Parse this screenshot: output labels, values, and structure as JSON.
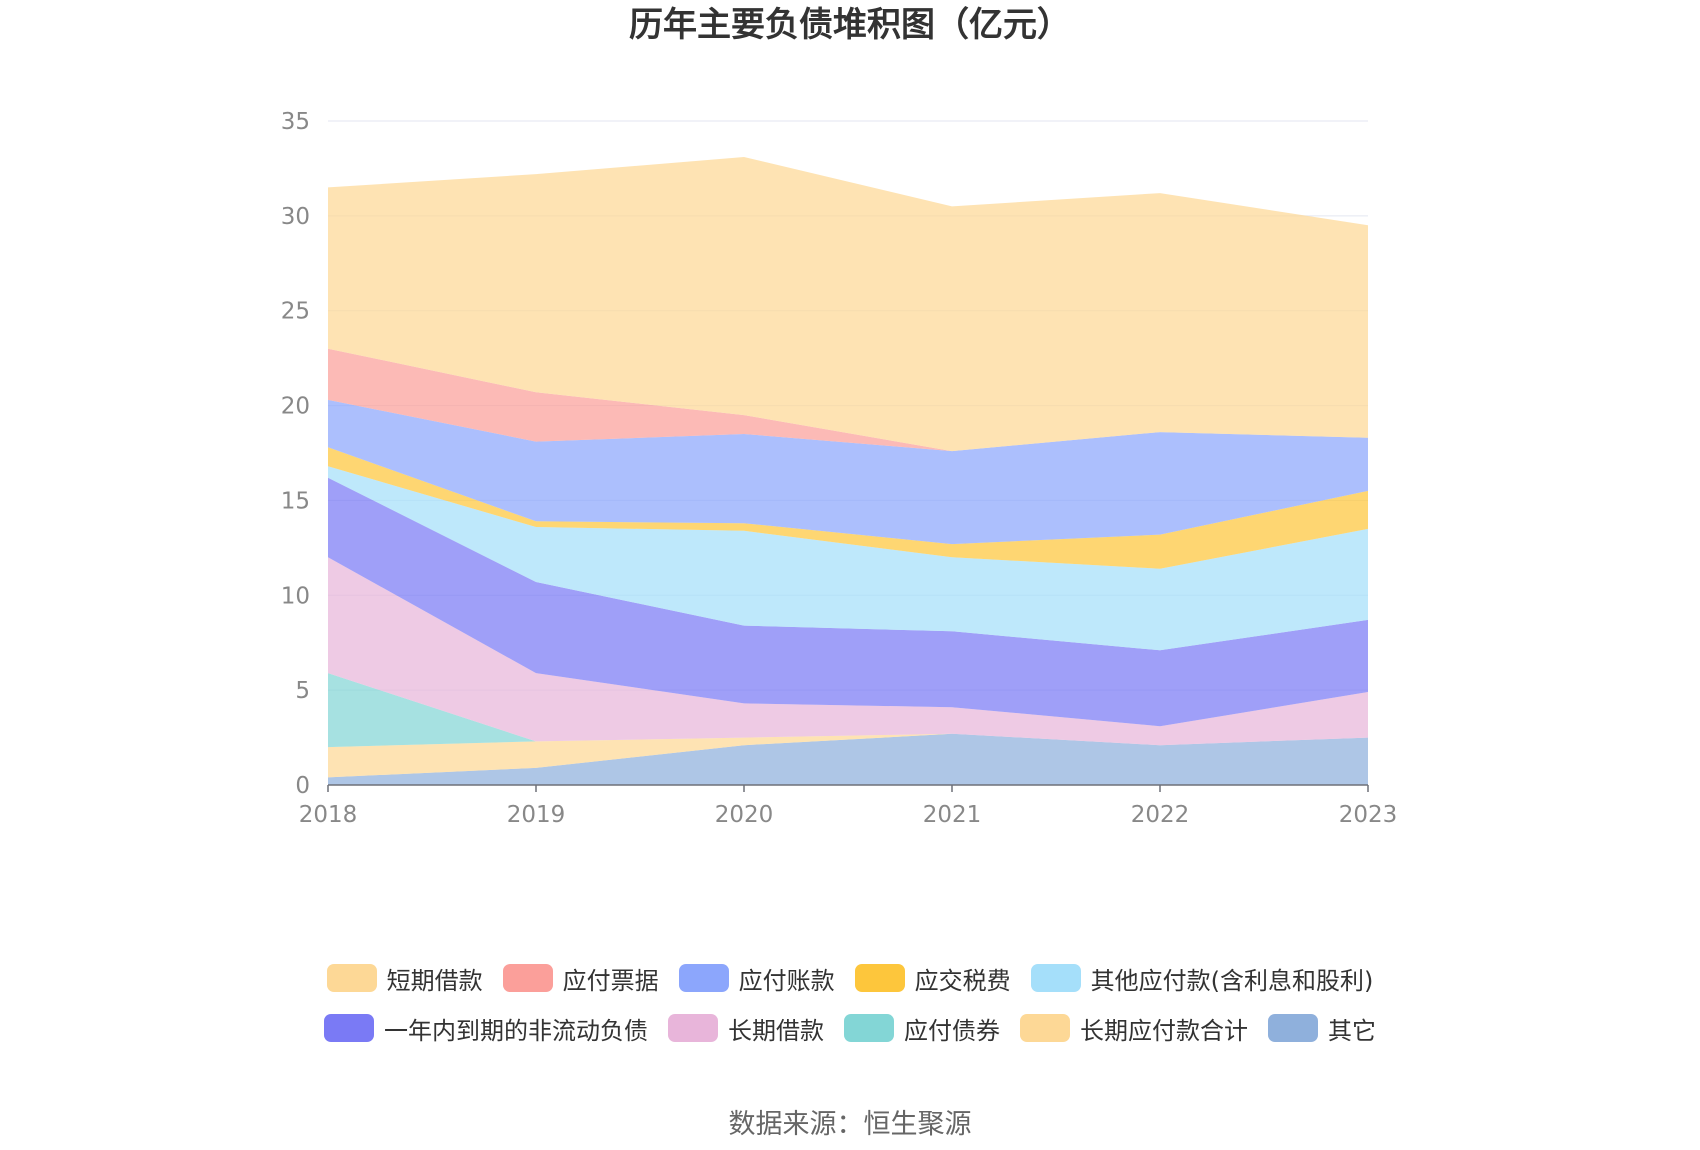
{
  "chart_data": {
    "type": "area",
    "stacked": true,
    "title": "历年主要负债堆积图（亿元）",
    "source": "数据来源：恒生聚源",
    "x": [
      "2018",
      "2019",
      "2020",
      "2021",
      "2022",
      "2023"
    ],
    "ylim": [
      0,
      35
    ],
    "yticks": [
      "0",
      "5",
      "10",
      "15",
      "20",
      "25",
      "30",
      "35"
    ],
    "grid": true,
    "legend_position": "bottom",
    "series": [
      {
        "name": "其它",
        "color": "#8fb0dc",
        "values": [
          0.4,
          0.9,
          2.1,
          2.7,
          2.1,
          2.5
        ]
      },
      {
        "name": "长期应付款合计",
        "color": "#fdd896",
        "values": [
          1.6,
          1.4,
          0.4,
          0.0,
          0.0,
          0.0
        ]
      },
      {
        "name": "应付债券",
        "color": "#83d6d6",
        "values": [
          3.9,
          0.0,
          0.0,
          0.0,
          0.0,
          0.0
        ]
      },
      {
        "name": "长期借款",
        "color": "#e8b5da",
        "values": [
          6.1,
          3.6,
          1.8,
          1.4,
          1.0,
          2.4
        ]
      },
      {
        "name": "一年内到期的非流动负债",
        "color": "#7a7af5",
        "values": [
          4.2,
          4.8,
          4.1,
          4.0,
          4.0,
          3.8
        ]
      },
      {
        "name": "其他应付款(含利息和股利)",
        "color": "#a5dffa",
        "values": [
          0.6,
          2.9,
          5.0,
          3.9,
          4.3,
          4.8
        ]
      },
      {
        "name": "应交税费",
        "color": "#fdc63c",
        "values": [
          1.0,
          0.3,
          0.4,
          0.7,
          1.8,
          2.0
        ]
      },
      {
        "name": "应付账款",
        "color": "#8ca6fc",
        "values": [
          2.5,
          4.2,
          4.7,
          4.9,
          5.4,
          2.8
        ]
      },
      {
        "name": "应付票据",
        "color": "#fb9f9a",
        "values": [
          2.7,
          2.6,
          1.0,
          0.0,
          0.0,
          0.0
        ]
      },
      {
        "name": "短期借款",
        "color": "#fdd896",
        "values": [
          8.5,
          11.5,
          13.6,
          12.9,
          12.6,
          11.2
        ]
      }
    ],
    "legend_rows": [
      [
        {
          "name": "短期借款",
          "color": "#fdd896"
        },
        {
          "name": "应付票据",
          "color": "#fb9f9a"
        },
        {
          "name": "应付账款",
          "color": "#8ca6fc"
        },
        {
          "name": "应交税费",
          "color": "#fdc63c"
        },
        {
          "name": "其他应付款(含利息和股利)",
          "color": "#a5dffa"
        }
      ],
      [
        {
          "name": "一年内到期的非流动负债",
          "color": "#7a7af5"
        },
        {
          "name": "长期借款",
          "color": "#e8b5da"
        },
        {
          "name": "应付债券",
          "color": "#83d6d6"
        },
        {
          "name": "长期应付款合计",
          "color": "#fdd896"
        },
        {
          "name": "其它",
          "color": "#8fb0dc"
        }
      ]
    ]
  }
}
